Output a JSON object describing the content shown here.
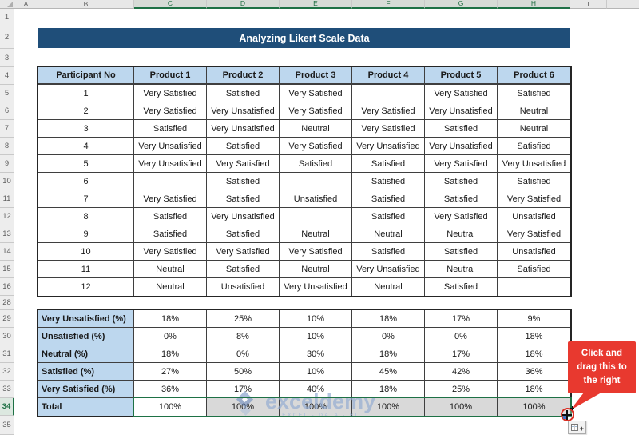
{
  "spreadsheet": {
    "column_headers": [
      "A",
      "B",
      "C",
      "D",
      "E",
      "F",
      "G",
      "H",
      "I"
    ],
    "selected_columns": [
      "C",
      "D",
      "E",
      "F",
      "G",
      "H"
    ],
    "row_numbers_top": [
      "1",
      "2",
      "3",
      "4",
      "5",
      "6",
      "7",
      "8",
      "9",
      "10",
      "11",
      "12",
      "13",
      "14",
      "15",
      "16"
    ],
    "row_numbers_bottom": [
      "28",
      "29",
      "30",
      "31",
      "32",
      "33",
      "34",
      "35"
    ],
    "selected_row": "34"
  },
  "title_banner": {
    "text": "Analyzing Likert Scale Data"
  },
  "data_table": {
    "headers": [
      "Participant No",
      "Product 1",
      "Product 2",
      "Product 3",
      "Product 4",
      "Product 5",
      "Product 6"
    ],
    "rows": [
      [
        "1",
        "Very Satisfied",
        "Satisfied",
        "Very Satisfied",
        "",
        "Very Satisfied",
        "Satisfied"
      ],
      [
        "2",
        "Very Satisfied",
        "Very Unsatisfied",
        "Very Satisfied",
        "Very Satisfied",
        "Very Unsatisfied",
        "Neutral"
      ],
      [
        "3",
        "Satisfied",
        "Very Unsatisfied",
        "Neutral",
        "Very Satisfied",
        "Satisfied",
        "Neutral"
      ],
      [
        "4",
        "Very Unsatisfied",
        "Satisfied",
        "Very Satisfied",
        "Very Unsatisfied",
        "Very Unsatisfied",
        "Satisfied"
      ],
      [
        "5",
        "Very Unsatisfied",
        "Very Satisfied",
        "Satisfied",
        "Satisfied",
        "Very Satisfied",
        "Very Unsatisfied"
      ],
      [
        "6",
        "",
        "Satisfied",
        "",
        "Satisfied",
        "Satisfied",
        "Satisfied"
      ],
      [
        "7",
        "Very Satisfied",
        "Satisfied",
        "Unsatisfied",
        "Satisfied",
        "Satisfied",
        "Very Satisfied"
      ],
      [
        "8",
        "Satisfied",
        "Very Unsatisfied",
        "",
        "Satisfied",
        "Very Satisfied",
        "Unsatisfied"
      ],
      [
        "9",
        "Satisfied",
        "Satisfied",
        "Neutral",
        "Neutral",
        "Neutral",
        "Very Satisfied"
      ],
      [
        "10",
        "Very Satisfied",
        "Very Satisfied",
        "Very Satisfied",
        "Satisfied",
        "Satisfied",
        "Unsatisfied"
      ],
      [
        "11",
        "Neutral",
        "Satisfied",
        "Neutral",
        "Very Unsatisfied",
        "Neutral",
        "Satisfied"
      ],
      [
        "12",
        "Neutral",
        "Unsatisfied",
        "Very Unsatisfied",
        "Neutral",
        "Satisfied",
        ""
      ]
    ]
  },
  "summary_table": {
    "rows": [
      {
        "label": "Very Unsatisfied (%)",
        "values": [
          "18%",
          "25%",
          "10%",
          "18%",
          "17%",
          "9%"
        ]
      },
      {
        "label": "Unsatisfied (%)",
        "values": [
          "0%",
          "8%",
          "10%",
          "0%",
          "0%",
          "18%"
        ]
      },
      {
        "label": "Neutral (%)",
        "values": [
          "18%",
          "0%",
          "30%",
          "18%",
          "17%",
          "18%"
        ]
      },
      {
        "label": "Satisfied (%)",
        "values": [
          "27%",
          "50%",
          "10%",
          "45%",
          "42%",
          "36%"
        ]
      },
      {
        "label": "Very Satisfied (%)",
        "values": [
          "36%",
          "17%",
          "40%",
          "18%",
          "25%",
          "18%"
        ]
      },
      {
        "label": "Total",
        "values": [
          "100%",
          "100%",
          "100%",
          "100%",
          "100%",
          "100%"
        ]
      }
    ]
  },
  "callout": {
    "text": "Click and drag this to the right"
  },
  "watermark": {
    "brand": "exceldemy",
    "tagline": "EXCEL - DATA - BI"
  },
  "icons": {
    "fill_handle_cursor": "plus-cursor-icon",
    "autofill_options": "autofill-options-icon",
    "select_all_corner": "select-all-triangle-icon"
  },
  "colors": {
    "banner_bg": "#1F4E79",
    "header_fill": "#BDD7EE",
    "total_gray": "#D9D9D9",
    "selection_green": "#1E7145",
    "callout_red": "#E8392F"
  }
}
